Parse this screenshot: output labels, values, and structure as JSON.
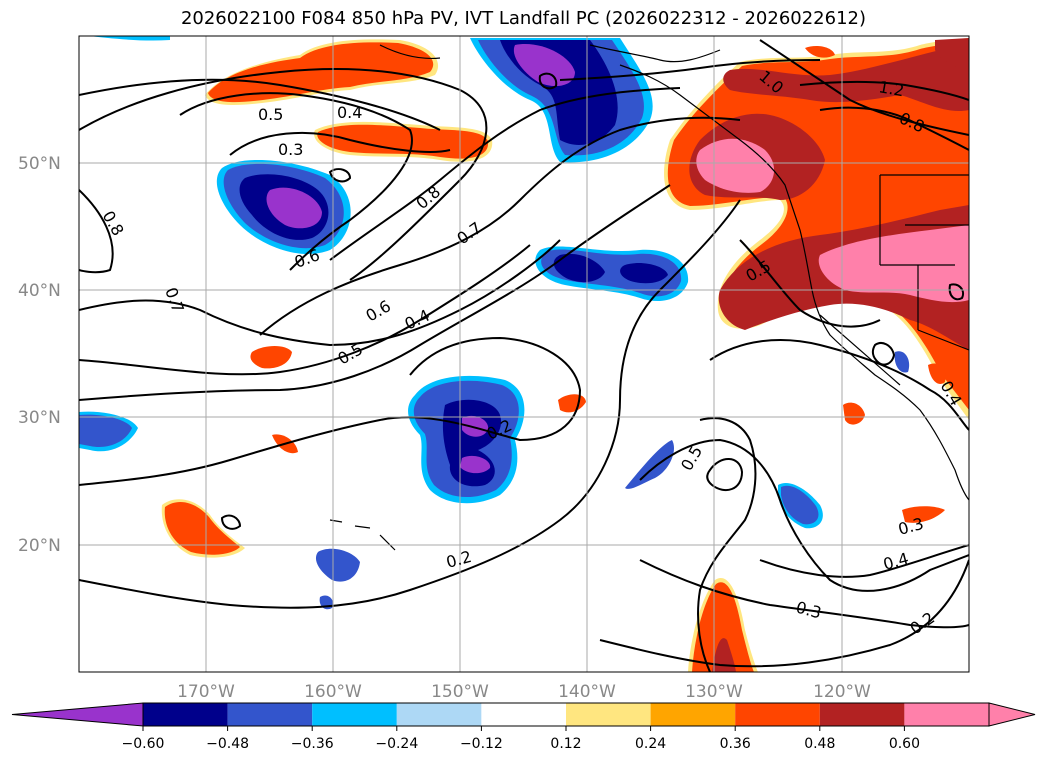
{
  "title": "2026022100 F084 850 hPa PV, IVT Landfall PC (2026022312 - 2026022612)",
  "lat_labels": [
    "50°N",
    "40°N",
    "30°N",
    "20°N"
  ],
  "lon_labels": [
    "170°W",
    "160°W",
    "150°W",
    "140°W",
    "130°W",
    "120°W"
  ],
  "colorbar": {
    "ticks": [
      "−0.60",
      "−0.48",
      "−0.36",
      "−0.24",
      "−0.12",
      "0.12",
      "0.24",
      "0.36",
      "0.48",
      "0.60"
    ],
    "colors": [
      "#9933cc",
      "#00008b",
      "#3355cc",
      "#00bfff",
      "#add8f5",
      "#ffffff",
      "#ffe680",
      "#ffa500",
      "#ff4500",
      "#b22222",
      "#ff80aa",
      "#ff80aa"
    ]
  },
  "contour_labels": [
    "0.5",
    "0.4",
    "0.3",
    "0.8",
    "0.7",
    "0.6",
    "0.8",
    "0.7",
    "0.5",
    "0.6",
    "0.4",
    "0.2",
    "0.5",
    "0.2",
    "0.3",
    "0.4",
    "0.2",
    "0.3",
    "1.0",
    "1.2",
    "0.8",
    "0.5",
    "0.4"
  ]
}
